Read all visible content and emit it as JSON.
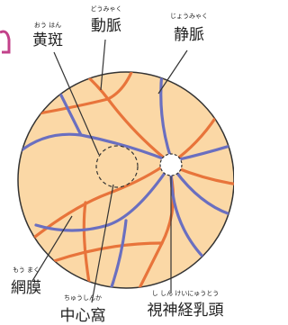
{
  "labels": [
    {
      "text": "黄斑",
      "ruby": "おう はん"
    },
    {
      "text": "動脈",
      "ruby": "どうみゃく"
    },
    {
      "text": "静脈",
      "ruby": "じょうみゃく"
    },
    {
      "text": "網膜",
      "ruby": "もう まく"
    },
    {
      "text": "中心窩",
      "ruby": "ちゅうしんか"
    },
    {
      "text": "視神経乳頭",
      "ruby": "し しん けいにゅうとう"
    }
  ]
}
